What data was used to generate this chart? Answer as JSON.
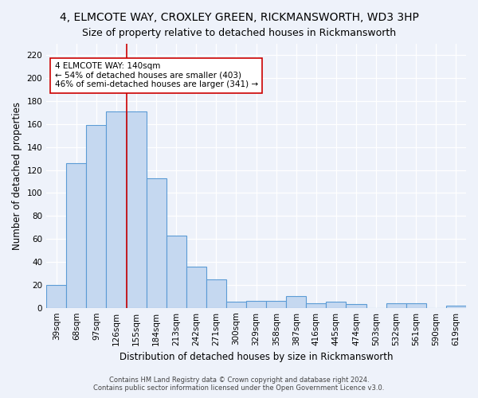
{
  "title1": "4, ELMCOTE WAY, CROXLEY GREEN, RICKMANSWORTH, WD3 3HP",
  "title2": "Size of property relative to detached houses in Rickmansworth",
  "xlabel": "Distribution of detached houses by size in Rickmansworth",
  "ylabel": "Number of detached properties",
  "categories": [
    "39sqm",
    "68sqm",
    "97sqm",
    "126sqm",
    "155sqm",
    "184sqm",
    "213sqm",
    "242sqm",
    "271sqm",
    "300sqm",
    "329sqm",
    "358sqm",
    "387sqm",
    "416sqm",
    "445sqm",
    "474sqm",
    "503sqm",
    "532sqm",
    "561sqm",
    "590sqm",
    "619sqm"
  ],
  "values": [
    20,
    126,
    159,
    171,
    171,
    113,
    63,
    36,
    25,
    5,
    6,
    6,
    10,
    4,
    5,
    3,
    0,
    4,
    4,
    0,
    2
  ],
  "bar_color": "#c5d8f0",
  "bar_edge_color": "#5b9bd5",
  "vline_x": 3.5,
  "vline_color": "#cc0000",
  "annotation_text": "4 ELMCOTE WAY: 140sqm\n← 54% of detached houses are smaller (403)\n46% of semi-detached houses are larger (341) →",
  "annotation_box_color": "#ffffff",
  "annotation_box_edge": "#cc0000",
  "ylim": [
    0,
    230
  ],
  "yticks": [
    0,
    20,
    40,
    60,
    80,
    100,
    120,
    140,
    160,
    180,
    200,
    220
  ],
  "footnote1": "Contains HM Land Registry data © Crown copyright and database right 2024.",
  "footnote2": "Contains public sector information licensed under the Open Government Licence v3.0.",
  "background_color": "#eef2fa",
  "title1_fontsize": 10,
  "title2_fontsize": 9,
  "xlabel_fontsize": 8.5,
  "ylabel_fontsize": 8.5,
  "tick_fontsize": 7.5,
  "annot_fontsize": 7.5,
  "footnote_fontsize": 6
}
